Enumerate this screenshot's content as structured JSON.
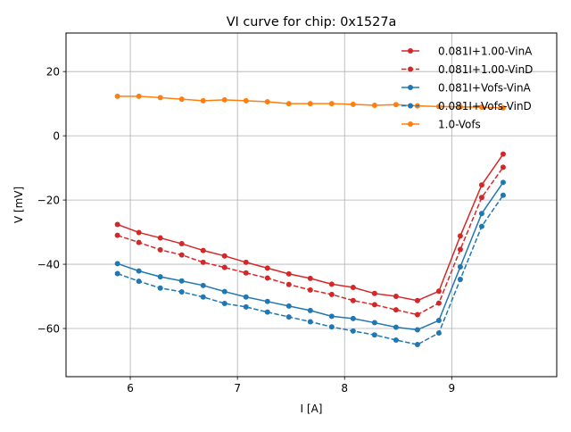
{
  "chart_data": {
    "type": "line",
    "title": "VI curve for chip: 0x1527a",
    "xlabel": "I [A]",
    "ylabel": "V [mV]",
    "xlim": [
      5.4,
      9.98
    ],
    "ylim": [
      -75,
      32
    ],
    "xticks": [
      6,
      7,
      8,
      9
    ],
    "yticks": [
      -60,
      -40,
      -20,
      0,
      20
    ],
    "xtick_labels": [
      "6",
      "7",
      "8",
      "9"
    ],
    "ytick_labels": [
      "−60",
      "−40",
      "−20",
      "0",
      "20"
    ],
    "grid": true,
    "legend_position": "top-right",
    "x": [
      5.88,
      6.08,
      6.28,
      6.48,
      6.68,
      6.88,
      7.08,
      7.28,
      7.48,
      7.68,
      7.88,
      8.08,
      8.28,
      8.48,
      8.68,
      8.88,
      9.08,
      9.28,
      9.48
    ],
    "series": [
      {
        "name": "0.081I+1.00-VinA",
        "color": "#d62728",
        "style": "solid",
        "values": [
          -27.6,
          -30.1,
          -31.8,
          -33.6,
          -35.7,
          -37.4,
          -39.4,
          -41.2,
          -43.0,
          -44.4,
          -46.2,
          -47.2,
          -49.1,
          -50.0,
          -51.3,
          -48.4,
          -31.2,
          -15.3,
          -5.7
        ]
      },
      {
        "name": "0.081I+1.00-VinD",
        "color": "#d62728",
        "style": "dashed",
        "values": [
          -31.0,
          -33.2,
          -35.5,
          -37.1,
          -39.4,
          -41.0,
          -42.7,
          -44.3,
          -46.3,
          -48.0,
          -49.4,
          -51.3,
          -52.6,
          -54.2,
          -55.7,
          -52.1,
          -35.4,
          -19.2,
          -9.8
        ]
      },
      {
        "name": "0.081I+Vofs-VinA",
        "color": "#1f77b4",
        "style": "solid",
        "values": [
          -39.8,
          -42.1,
          -43.9,
          -45.2,
          -46.6,
          -48.5,
          -50.2,
          -51.6,
          -53.0,
          -54.4,
          -56.2,
          -56.9,
          -58.2,
          -59.6,
          -60.4,
          -57.5,
          -40.8,
          -24.2,
          -14.5
        ]
      },
      {
        "name": "0.081I+Vofs-VinD",
        "color": "#1f77b4",
        "style": "dashed",
        "values": [
          -42.9,
          -45.3,
          -47.4,
          -48.6,
          -50.2,
          -52.2,
          -53.3,
          -54.9,
          -56.4,
          -57.9,
          -59.5,
          -60.8,
          -62.0,
          -63.6,
          -65.0,
          -61.4,
          -44.7,
          -28.2,
          -18.5
        ]
      },
      {
        "name": "1.0-Vofs",
        "color": "#ff7f0e",
        "style": "solid",
        "values": [
          12.3,
          12.3,
          11.9,
          11.4,
          10.9,
          11.2,
          10.9,
          10.6,
          10.0,
          10.0,
          10.0,
          9.8,
          9.5,
          9.7,
          9.3,
          9.1,
          9.0,
          8.9,
          8.7
        ]
      }
    ]
  }
}
